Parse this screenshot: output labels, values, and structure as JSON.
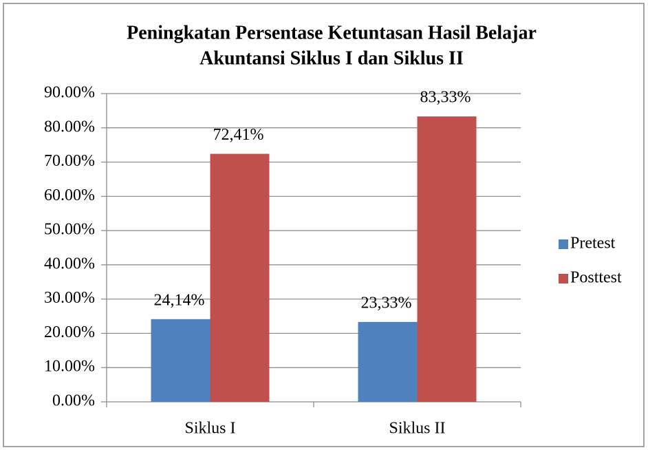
{
  "chart_data": {
    "type": "bar",
    "title": [
      "Peningkatan Persentase  Ketuntasan Hasil Belajar",
      "Akuntansi Siklus I dan Siklus II"
    ],
    "categories": [
      "Siklus I",
      "Siklus II"
    ],
    "series": [
      {
        "name": "Pretest",
        "color": "#4f81bd",
        "values": [
          24.14,
          23.33
        ],
        "value_labels": [
          "24,14%",
          "23,33%"
        ]
      },
      {
        "name": "Posttest",
        "color": "#c0504d",
        "values": [
          72.41,
          83.33
        ],
        "value_labels": [
          "72,41%",
          "83,33%"
        ]
      }
    ],
    "ylim": [
      0,
      90
    ],
    "yticks": [
      {
        "value": 0,
        "label": "0.00%"
      },
      {
        "value": 10,
        "label": "10.00%"
      },
      {
        "value": 20,
        "label": "20.00%"
      },
      {
        "value": 30,
        "label": "30.00%"
      },
      {
        "value": 40,
        "label": "40.00%"
      },
      {
        "value": 50,
        "label": "50.00%"
      },
      {
        "value": 60,
        "label": "60.00%"
      },
      {
        "value": 70,
        "label": "70.00%"
      },
      {
        "value": 80,
        "label": "80.00%"
      },
      {
        "value": 90,
        "label": "90.00%"
      }
    ],
    "grid": true,
    "legend": "right"
  }
}
